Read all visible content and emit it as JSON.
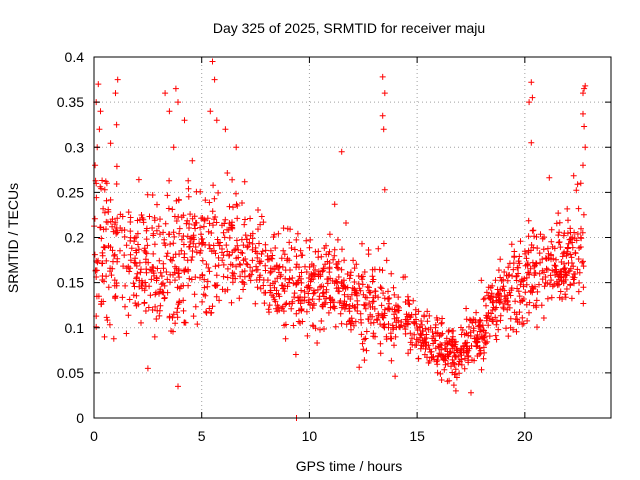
{
  "chart_data": {
    "type": "scatter",
    "title": "Day 325 of 2025, SRMTID for receiver maju",
    "xlabel": "GPS time / hours",
    "ylabel": "SRMTID / TECUs",
    "xlim": [
      0,
      24
    ],
    "ylim": [
      0,
      0.4
    ],
    "x_ticks": [
      0,
      5,
      10,
      15,
      20
    ],
    "x_tick_labels": [
      "0",
      "5",
      "10",
      "15",
      "20"
    ],
    "y_ticks": [
      0,
      0.05,
      0.1,
      0.15,
      0.2,
      0.25,
      0.3,
      0.35,
      0.4
    ],
    "y_tick_labels": [
      "0",
      "0.05",
      "0.1",
      "0.15",
      "0.2",
      "0.25",
      "0.3",
      "0.35",
      "0.4"
    ],
    "grid": true,
    "marker": "+",
    "series_color": "#ff0000",
    "trend": [
      {
        "x": 0.0,
        "y": 0.19,
        "spread": 0.07
      },
      {
        "x": 1.0,
        "y": 0.18,
        "spread": 0.06
      },
      {
        "x": 2.0,
        "y": 0.17,
        "spread": 0.05
      },
      {
        "x": 3.0,
        "y": 0.16,
        "spread": 0.06
      },
      {
        "x": 4.0,
        "y": 0.17,
        "spread": 0.06
      },
      {
        "x": 5.0,
        "y": 0.18,
        "spread": 0.06
      },
      {
        "x": 6.0,
        "y": 0.19,
        "spread": 0.05
      },
      {
        "x": 7.0,
        "y": 0.18,
        "spread": 0.04
      },
      {
        "x": 8.0,
        "y": 0.16,
        "spread": 0.04
      },
      {
        "x": 9.0,
        "y": 0.15,
        "spread": 0.04
      },
      {
        "x": 10.0,
        "y": 0.14,
        "spread": 0.04
      },
      {
        "x": 11.0,
        "y": 0.15,
        "spread": 0.04
      },
      {
        "x": 12.0,
        "y": 0.13,
        "spread": 0.04
      },
      {
        "x": 13.0,
        "y": 0.12,
        "spread": 0.04
      },
      {
        "x": 14.0,
        "y": 0.11,
        "spread": 0.035
      },
      {
        "x": 15.0,
        "y": 0.1,
        "spread": 0.03
      },
      {
        "x": 16.0,
        "y": 0.075,
        "spread": 0.025
      },
      {
        "x": 17.0,
        "y": 0.07,
        "spread": 0.025
      },
      {
        "x": 18.0,
        "y": 0.1,
        "spread": 0.03
      },
      {
        "x": 19.0,
        "y": 0.13,
        "spread": 0.035
      },
      {
        "x": 20.0,
        "y": 0.15,
        "spread": 0.04
      },
      {
        "x": 21.0,
        "y": 0.16,
        "spread": 0.04
      },
      {
        "x": 22.0,
        "y": 0.17,
        "spread": 0.04
      },
      {
        "x": 22.8,
        "y": 0.2,
        "spread": 0.05
      }
    ],
    "outliers": [
      {
        "x": 0.1,
        "y": 0.35
      },
      {
        "x": 0.2,
        "y": 0.37
      },
      {
        "x": 0.3,
        "y": 0.34
      },
      {
        "x": 0.25,
        "y": 0.32
      },
      {
        "x": 0.15,
        "y": 0.3
      },
      {
        "x": 0.05,
        "y": 0.28
      },
      {
        "x": 0.6,
        "y": 0.26
      },
      {
        "x": 1.1,
        "y": 0.375
      },
      {
        "x": 1.0,
        "y": 0.36
      },
      {
        "x": 1.05,
        "y": 0.325
      },
      {
        "x": 3.3,
        "y": 0.36
      },
      {
        "x": 3.5,
        "y": 0.34
      },
      {
        "x": 3.8,
        "y": 0.365
      },
      {
        "x": 3.9,
        "y": 0.35
      },
      {
        "x": 3.7,
        "y": 0.3
      },
      {
        "x": 4.2,
        "y": 0.33
      },
      {
        "x": 5.5,
        "y": 0.395
      },
      {
        "x": 5.6,
        "y": 0.375
      },
      {
        "x": 5.4,
        "y": 0.34
      },
      {
        "x": 5.7,
        "y": 0.33
      },
      {
        "x": 6.1,
        "y": 0.32
      },
      {
        "x": 6.6,
        "y": 0.3
      },
      {
        "x": 3.9,
        "y": 0.035
      },
      {
        "x": 2.5,
        "y": 0.055
      },
      {
        "x": 9.4,
        "y": 0.0
      },
      {
        "x": 13.4,
        "y": 0.378
      },
      {
        "x": 13.5,
        "y": 0.36
      },
      {
        "x": 13.4,
        "y": 0.335
      },
      {
        "x": 13.45,
        "y": 0.32
      },
      {
        "x": 13.5,
        "y": 0.253
      },
      {
        "x": 11.5,
        "y": 0.295
      },
      {
        "x": 20.3,
        "y": 0.372
      },
      {
        "x": 20.35,
        "y": 0.355
      },
      {
        "x": 20.2,
        "y": 0.35
      },
      {
        "x": 20.3,
        "y": 0.305
      },
      {
        "x": 22.75,
        "y": 0.365
      },
      {
        "x": 22.8,
        "y": 0.368
      },
      {
        "x": 22.7,
        "y": 0.36
      },
      {
        "x": 22.7,
        "y": 0.337
      },
      {
        "x": 22.75,
        "y": 0.323
      },
      {
        "x": 22.8,
        "y": 0.3
      },
      {
        "x": 22.7,
        "y": 0.28
      },
      {
        "x": 22.6,
        "y": 0.26
      },
      {
        "x": 17.5,
        "y": 0.028
      },
      {
        "x": 16.8,
        "y": 0.03
      }
    ],
    "samples_per_hour": 72
  }
}
